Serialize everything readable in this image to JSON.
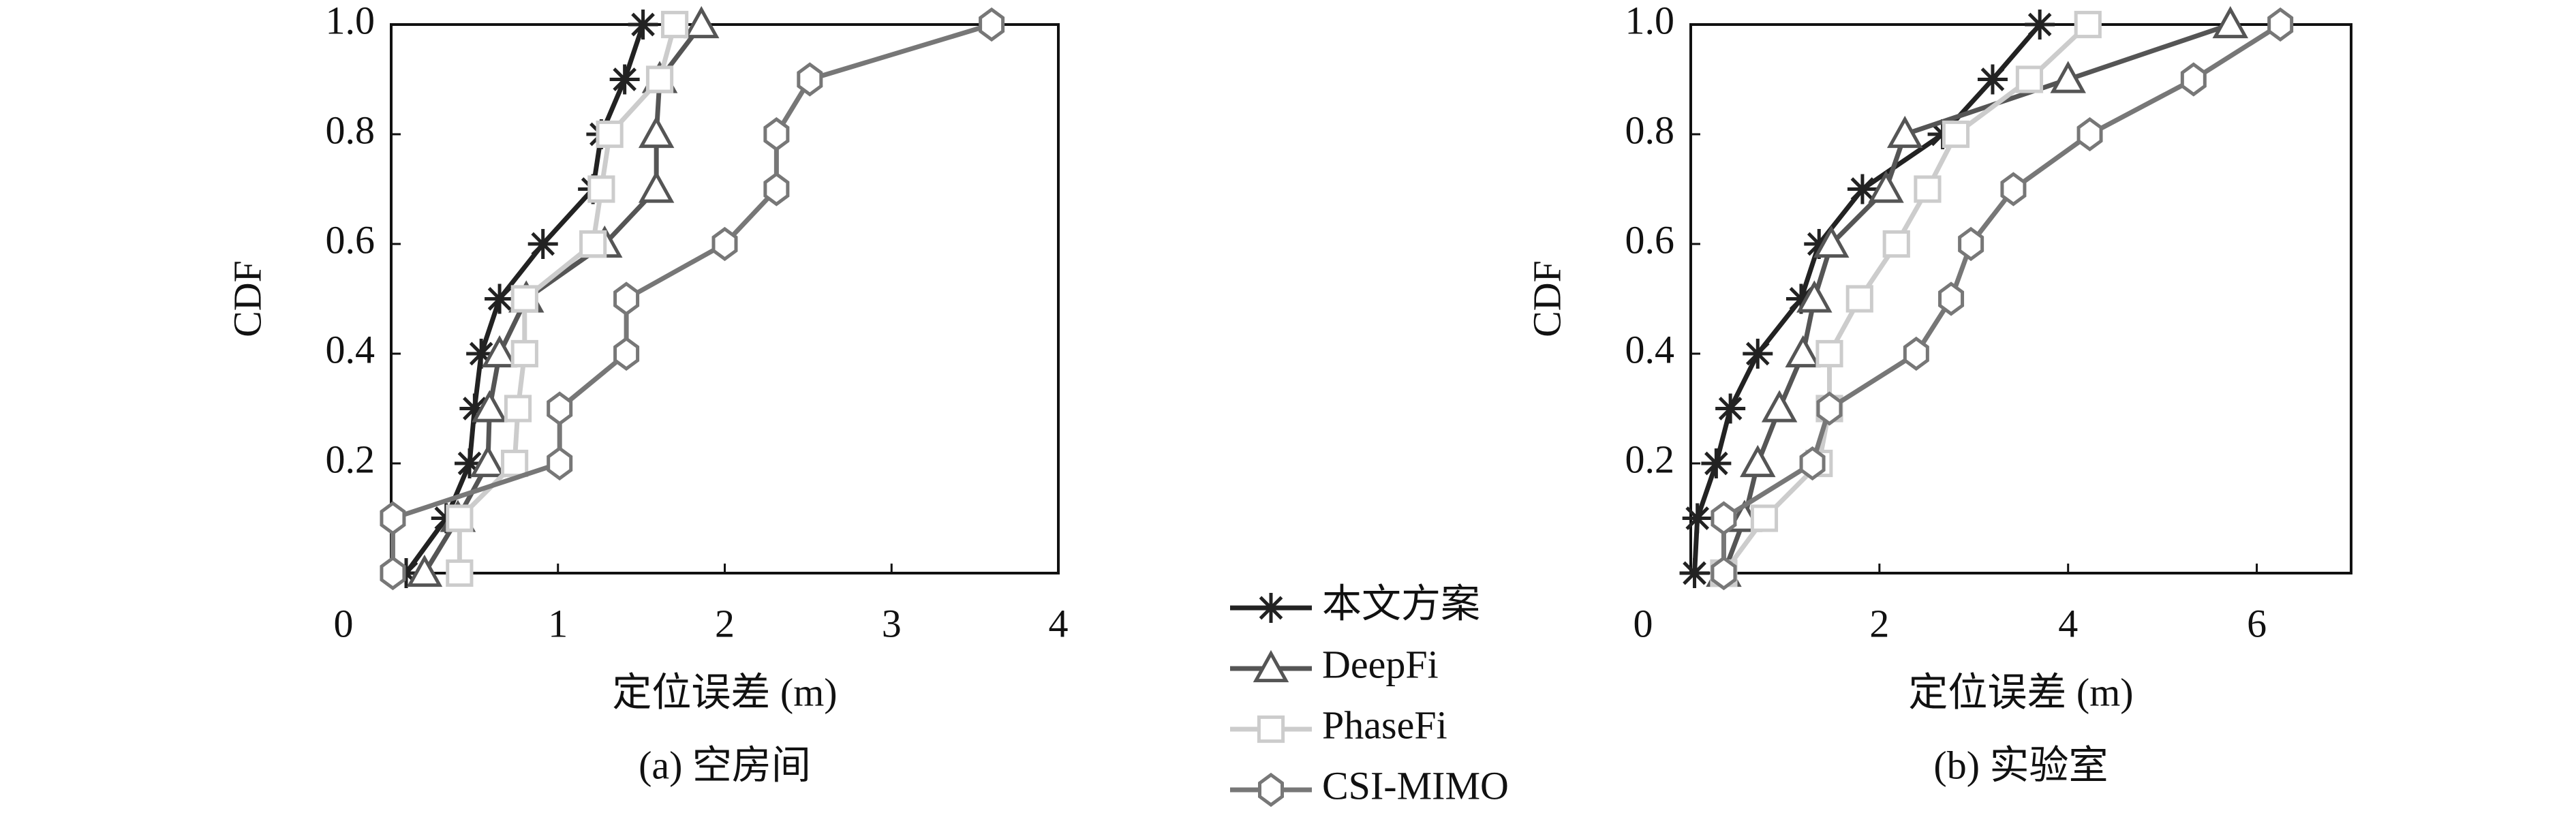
{
  "chart_data": [
    {
      "type": "line",
      "y_label": "CDF",
      "x_label": "定位误差 (m)",
      "caption": "(a) 空房间",
      "xlim": [
        0,
        4
      ],
      "ylim": [
        0,
        1
      ],
      "xticks": [
        0,
        1,
        2,
        3,
        4
      ],
      "yticks": [
        0.2,
        0.4,
        0.6,
        0.8,
        {
          "value": 1,
          "label": "1.0"
        }
      ],
      "grid": false,
      "series": [
        {
          "name": "本文方案",
          "color": "#222222",
          "marker": "star",
          "x": [
            0.09,
            0.33,
            0.47,
            0.5,
            0.54,
            0.65,
            0.91,
            1.21,
            1.26,
            1.4,
            1.51
          ],
          "values": [
            0,
            0.1,
            0.2,
            0.3,
            0.4,
            0.5,
            0.6,
            0.7,
            0.8,
            0.9,
            1
          ]
        },
        {
          "name": "DeepFi",
          "color": "#555555",
          "marker": "triangle",
          "x": [
            0.2,
            0.4,
            0.58,
            0.59,
            0.65,
            0.81,
            1.28,
            1.59,
            1.59,
            1.61,
            1.86
          ],
          "values": [
            0,
            0.1,
            0.2,
            0.3,
            0.4,
            0.5,
            0.6,
            0.7,
            0.8,
            0.9,
            1
          ]
        },
        {
          "name": "PhaseFi",
          "color": "#cccccc",
          "marker": "square",
          "x": [
            0.41,
            0.41,
            0.74,
            0.76,
            0.8,
            0.8,
            1.21,
            1.26,
            1.31,
            1.61,
            1.7
          ],
          "values": [
            0,
            0.1,
            0.2,
            0.3,
            0.4,
            0.5,
            0.6,
            0.7,
            0.8,
            0.9,
            1
          ]
        },
        {
          "name": "CSI-MIMO",
          "color": "#777777",
          "marker": "diamond",
          "x": [
            0.01,
            0.01,
            1.01,
            1.01,
            1.41,
            1.41,
            2.0,
            2.31,
            2.31,
            2.51,
            3.6
          ],
          "values": [
            0,
            0.1,
            0.2,
            0.3,
            0.4,
            0.5,
            0.6,
            0.7,
            0.8,
            0.9,
            1
          ]
        }
      ]
    },
    {
      "type": "line",
      "y_label": "CDF",
      "x_label": "定位误差 (m)",
      "caption": "(b) 实验室",
      "xlim": [
        0,
        7
      ],
      "ylim": [
        0,
        1
      ],
      "xticks": [
        0,
        2,
        4,
        6
      ],
      "yticks": [
        0.2,
        0.4,
        0.6,
        0.8,
        {
          "value": 1,
          "label": "1.0"
        }
      ],
      "grid": false,
      "series": [
        {
          "name": "本文方案",
          "color": "#222222",
          "marker": "star",
          "x": [
            0.04,
            0.07,
            0.27,
            0.42,
            0.71,
            1.17,
            1.36,
            1.82,
            2.67,
            3.2,
            3.7
          ],
          "values": [
            0,
            0.1,
            0.2,
            0.3,
            0.4,
            0.5,
            0.6,
            0.7,
            0.8,
            0.9,
            1
          ]
        },
        {
          "name": "DeepFi",
          "color": "#555555",
          "marker": "triangle",
          "x": [
            0.35,
            0.57,
            0.71,
            0.94,
            1.19,
            1.31,
            1.49,
            2.07,
            2.27,
            4.0,
            5.72
          ],
          "values": [
            0,
            0.1,
            0.2,
            0.3,
            0.4,
            0.5,
            0.6,
            0.7,
            0.8,
            0.9,
            1
          ]
        },
        {
          "name": "PhaseFi",
          "color": "#cccccc",
          "marker": "square",
          "x": [
            0.35,
            0.78,
            1.36,
            1.47,
            1.47,
            1.79,
            2.18,
            2.51,
            2.81,
            3.59,
            4.21
          ],
          "values": [
            0,
            0.1,
            0.2,
            0.3,
            0.4,
            0.5,
            0.6,
            0.7,
            0.8,
            0.9,
            1
          ]
        },
        {
          "name": "CSI-MIMO",
          "color": "#777777",
          "marker": "diamond",
          "x": [
            0.35,
            0.35,
            1.29,
            1.47,
            2.39,
            2.76,
            2.97,
            3.42,
            4.23,
            5.33,
            6.25
          ],
          "values": [
            0,
            0.1,
            0.2,
            0.3,
            0.4,
            0.5,
            0.6,
            0.7,
            0.8,
            0.9,
            1
          ]
        }
      ]
    }
  ]
}
